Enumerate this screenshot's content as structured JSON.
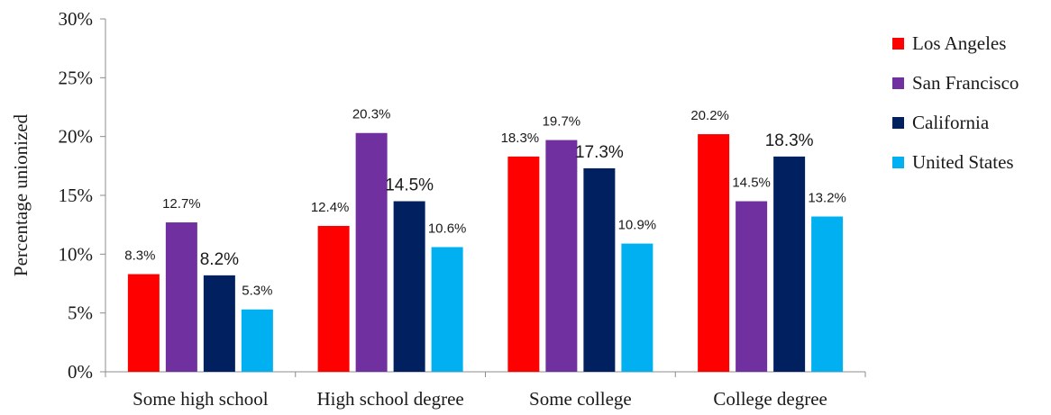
{
  "chart_data": {
    "type": "bar",
    "ylabel": "Percentage unionized",
    "ylim": [
      0,
      30
    ],
    "yticks": [
      0,
      5,
      10,
      15,
      20,
      25,
      30
    ],
    "ytick_suffix": "%",
    "grid": false,
    "legend_position": "right",
    "categories": [
      "Some high school",
      "High school degree",
      "Some college",
      "College degree"
    ],
    "series": [
      {
        "name": "Los Angeles",
        "color": "#ff0000",
        "values": [
          8.3,
          12.4,
          18.3,
          20.2
        ],
        "labels": [
          "8.3%",
          "12.4%",
          "18.3%",
          "20.2%"
        ]
      },
      {
        "name": "San Francisco",
        "color": "#7030a0",
        "values": [
          12.7,
          20.3,
          19.7,
          14.5
        ],
        "labels": [
          "12.7%",
          "20.3%",
          "19.7%",
          "14.5%"
        ]
      },
      {
        "name": "California",
        "color": "#002060",
        "values": [
          8.2,
          14.5,
          17.3,
          18.3
        ],
        "labels": [
          "8.2%",
          "14.5%",
          "17.3%",
          "18.3%"
        ]
      },
      {
        "name": "United States",
        "color": "#00b0f0",
        "values": [
          5.3,
          10.6,
          10.9,
          13.2
        ],
        "labels": [
          "5.3%",
          "10.6%",
          "10.9%",
          "13.2%"
        ]
      }
    ]
  }
}
